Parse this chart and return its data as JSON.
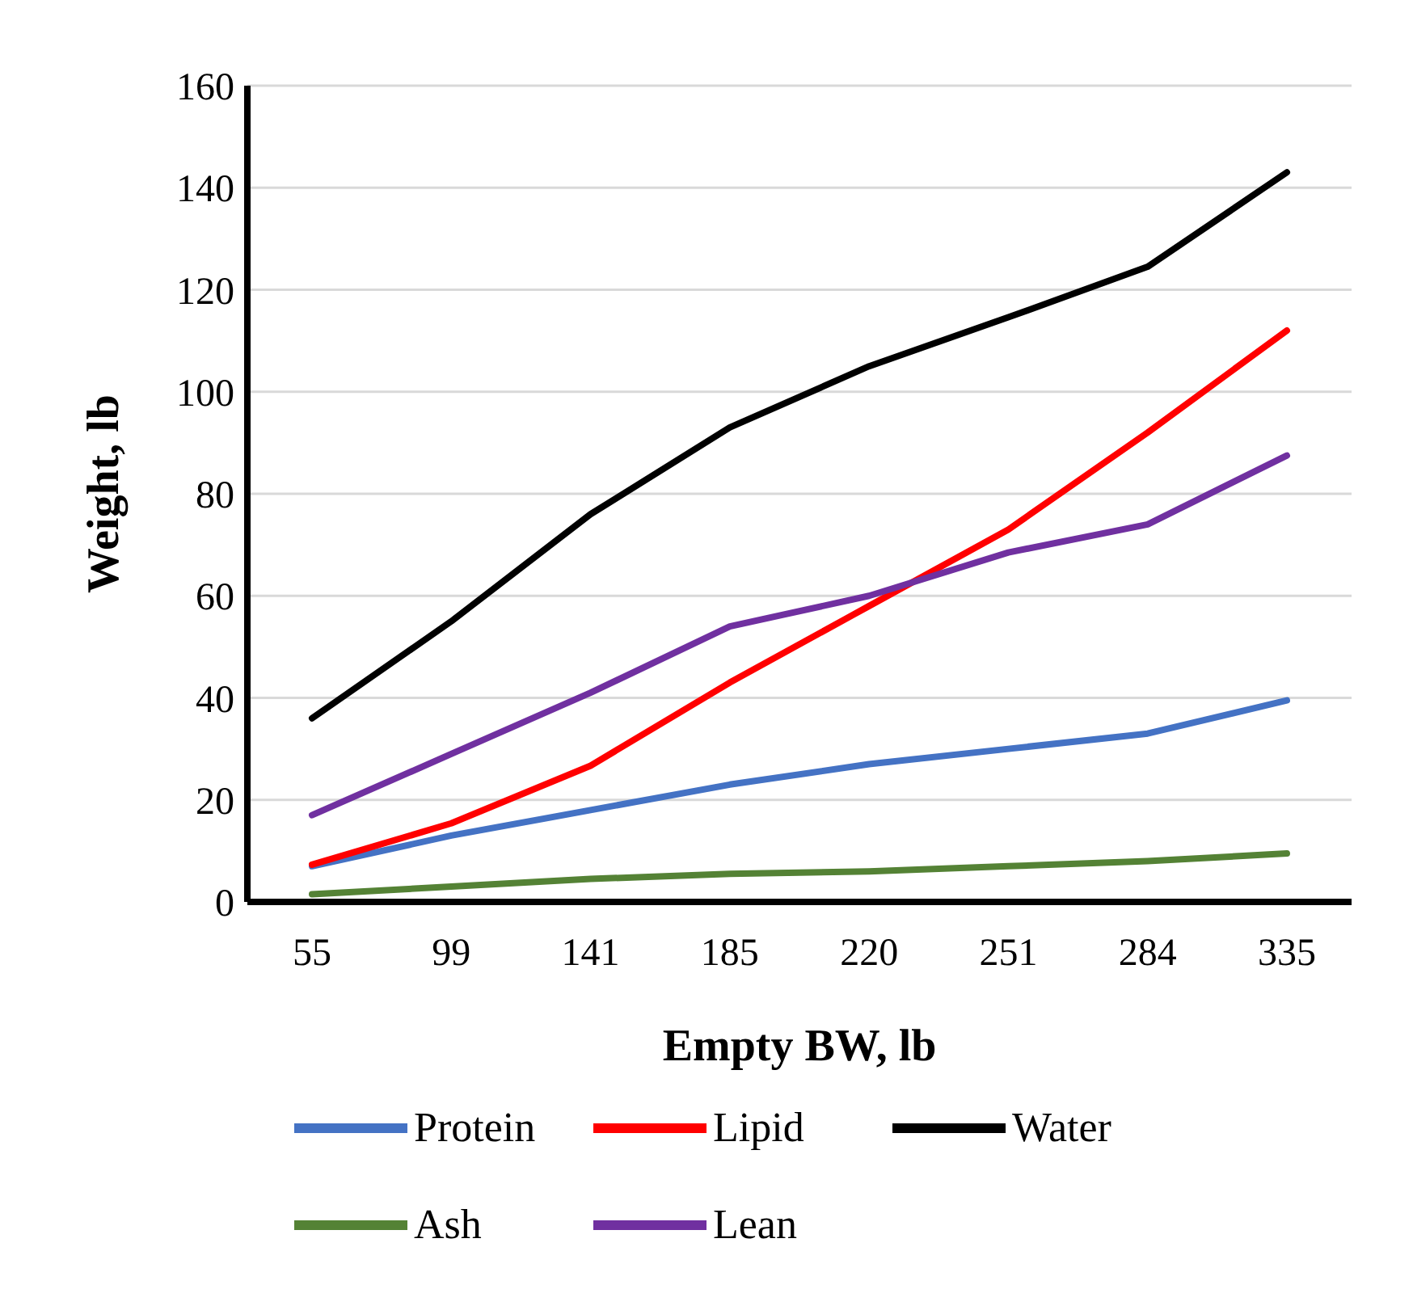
{
  "chart_data": {
    "type": "line",
    "xlabel": "Empty BW, lb",
    "ylabel": "Weight, lb",
    "categories": [
      "55",
      "99",
      "141",
      "185",
      "220",
      "251",
      "284",
      "335"
    ],
    "series": [
      {
        "name": "Protein",
        "color": "#4472c4",
        "values": [
          7,
          13,
          18,
          23,
          27,
          30,
          33,
          39.5
        ]
      },
      {
        "name": "Lipid",
        "color": "#ff0000",
        "values": [
          7.3,
          15.4,
          26.7,
          43,
          58,
          73,
          92,
          112
        ]
      },
      {
        "name": "Water",
        "color": "#000000",
        "values": [
          36,
          55,
          76,
          93,
          105,
          114.6,
          124.5,
          143
        ]
      },
      {
        "name": "Ash",
        "color": "#548235",
        "values": [
          1.5,
          3,
          4.5,
          5.5,
          6,
          7,
          8,
          9.5
        ]
      },
      {
        "name": "Lean",
        "color": "#7030a0",
        "values": [
          17,
          29,
          41,
          54,
          60,
          68.5,
          74,
          87.5
        ]
      }
    ],
    "ylim": [
      0,
      160
    ],
    "yticks": [
      0,
      20,
      40,
      60,
      80,
      100,
      120,
      140,
      160
    ],
    "grid": "y",
    "legend": "bottom",
    "marker": "none",
    "line_style": "solid"
  }
}
